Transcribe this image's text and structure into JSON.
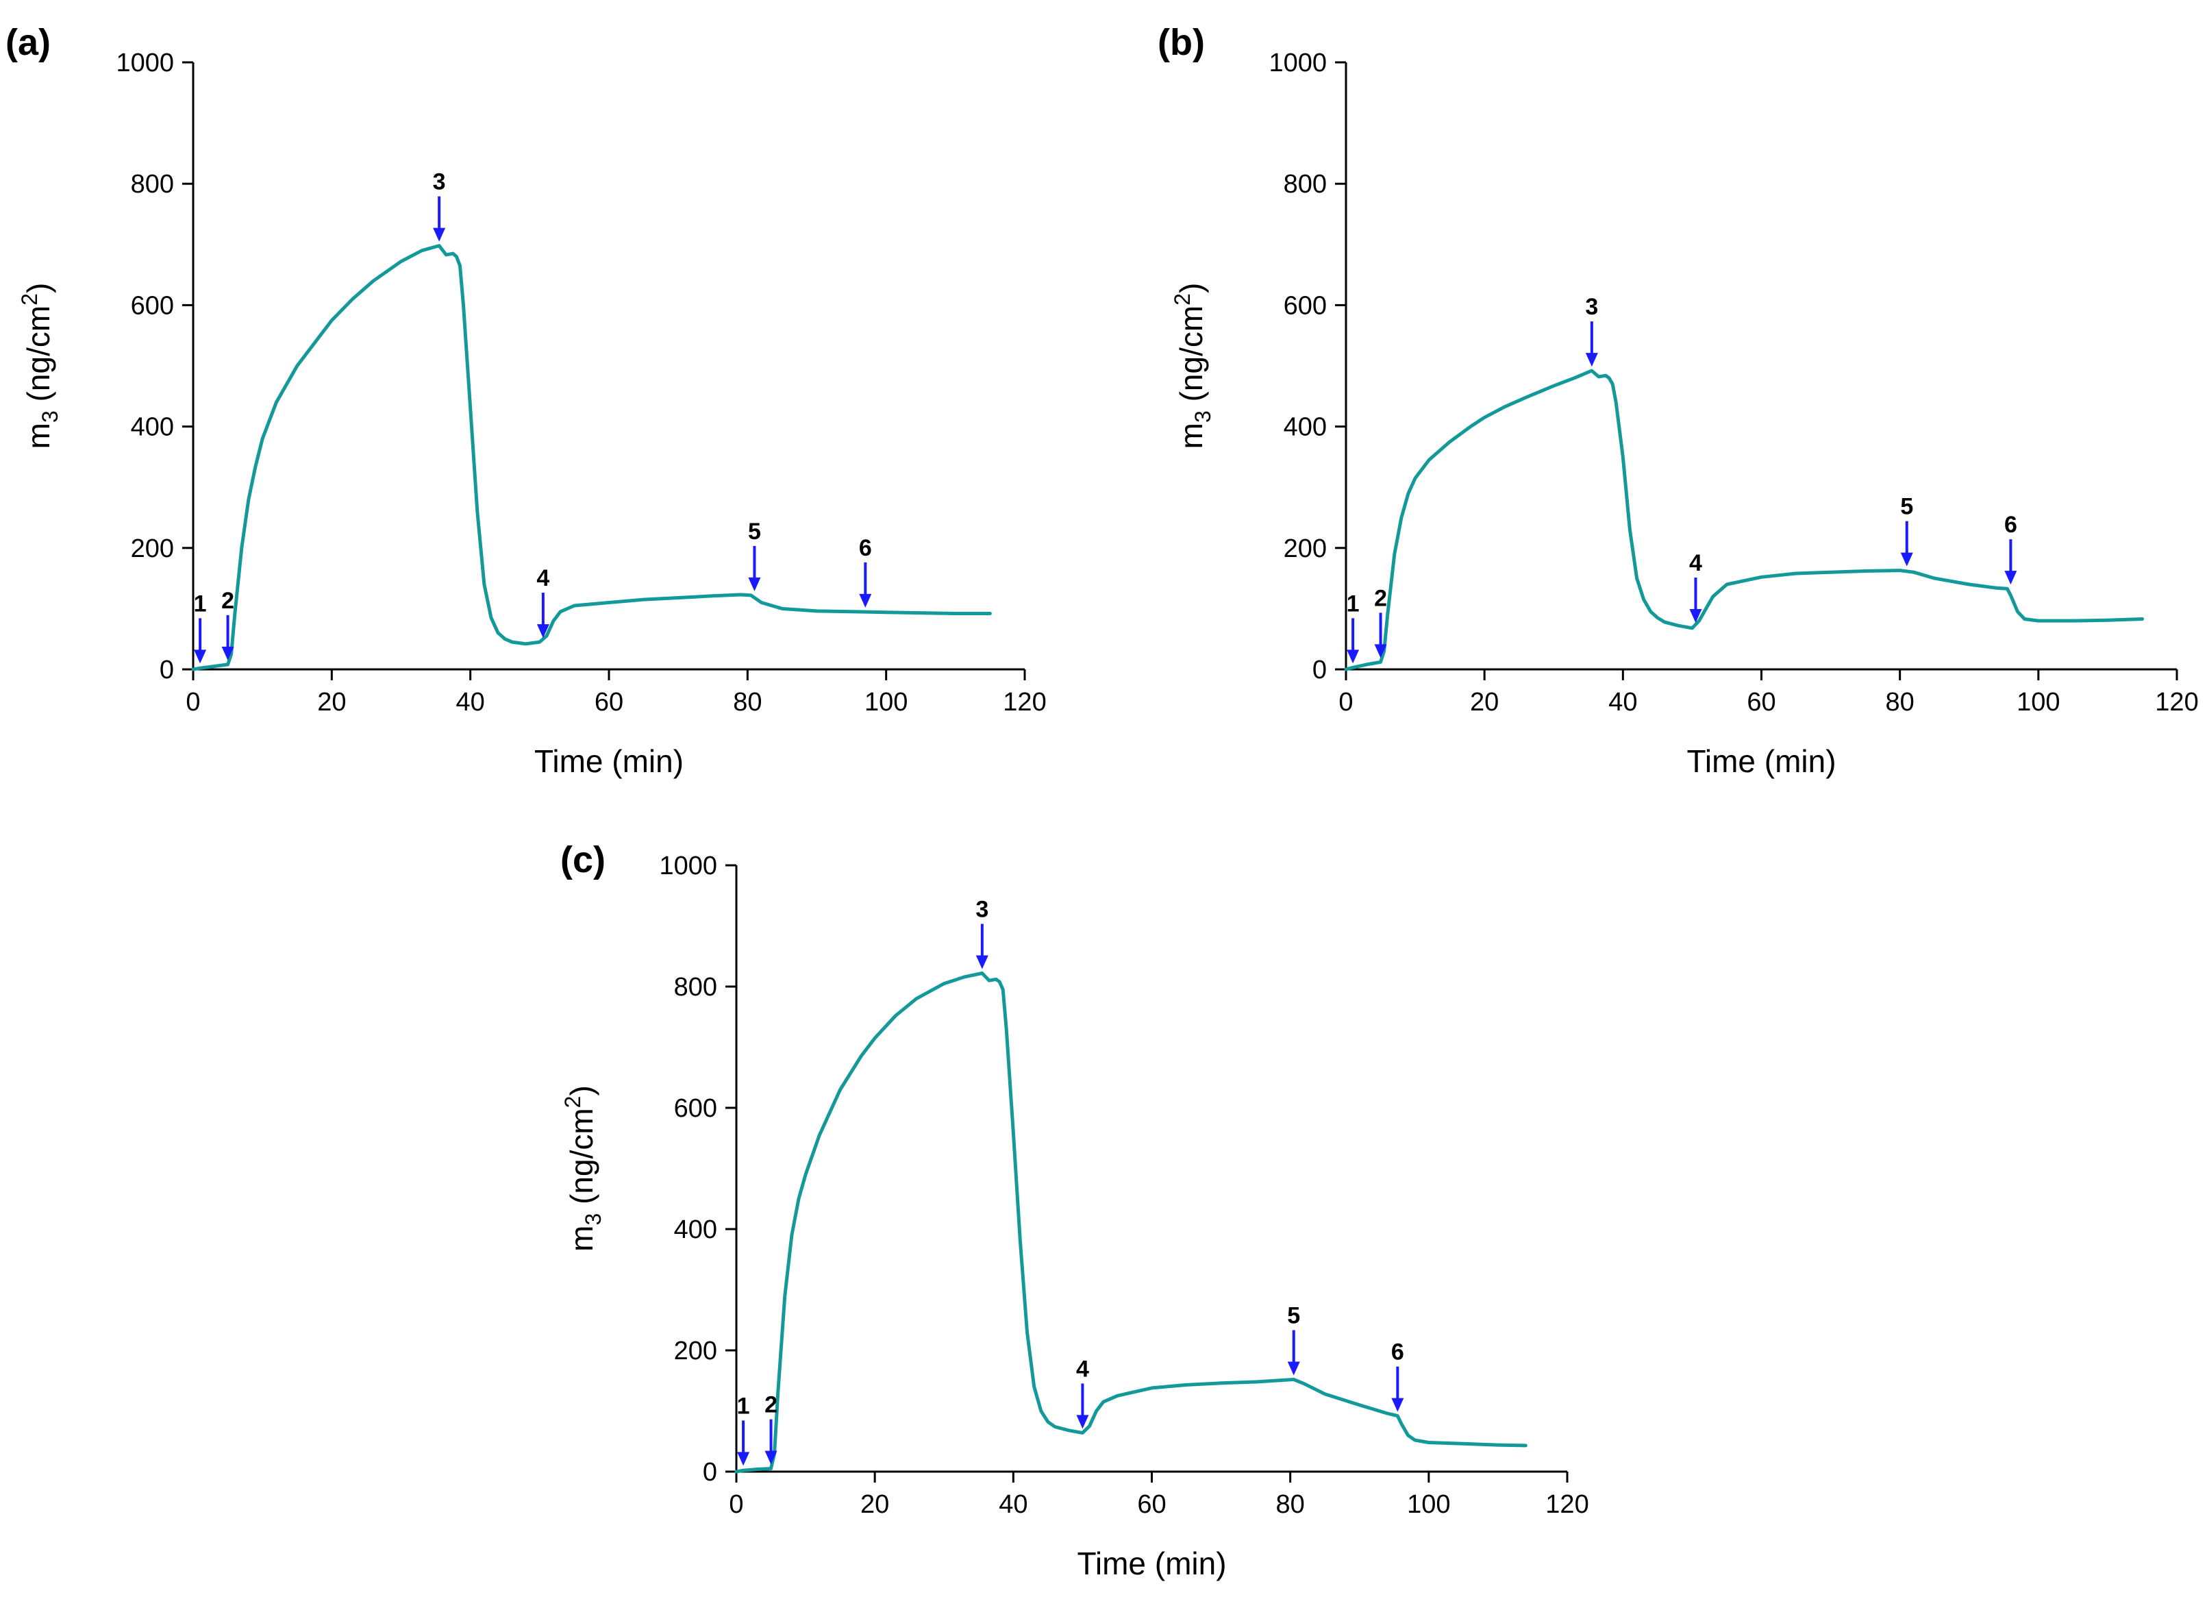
{
  "figure": "QCM-D adsorption profiles (third overtone mass) for three panels",
  "colors": {
    "series": "#14999a",
    "markers": "#1a1aff",
    "axes": "#000000"
  },
  "chart_data": [
    {
      "panel_label": "(a)",
      "type": "line",
      "title": "",
      "xlabel": "Time (min)",
      "ylabel": {
        "base": "m",
        "sub": "3",
        "unit": " (ng/cm",
        "sup": "2",
        "close": ")"
      },
      "xlim": [
        0,
        120
      ],
      "ylim": [
        0,
        1000
      ],
      "xticks": [
        0,
        20,
        40,
        60,
        80,
        100,
        120
      ],
      "yticks": [
        0,
        200,
        400,
        600,
        800,
        1000
      ],
      "xtick_labels": [
        "0",
        "20",
        "40",
        "60",
        "80",
        "100",
        "120"
      ],
      "ytick_labels": [
        "0",
        "200",
        "400",
        "600",
        "800",
        "1000"
      ],
      "series": [
        {
          "name": "m3",
          "x": [
            0,
            1,
            3,
            5,
            5.5,
            6,
            7,
            8,
            9,
            10,
            12,
            15,
            18,
            20,
            23,
            26,
            30,
            33,
            35.5,
            36.5,
            37.5,
            38,
            38.5,
            39,
            40,
            41,
            42,
            43,
            44,
            45,
            46,
            48,
            50,
            51,
            52,
            53,
            55,
            60,
            65,
            70,
            75,
            79,
            80.5,
            82,
            85,
            90,
            95,
            100,
            105,
            110,
            115
          ],
          "y": [
            0,
            2,
            5,
            8,
            25,
            90,
            200,
            280,
            335,
            380,
            440,
            500,
            545,
            575,
            610,
            640,
            672,
            690,
            698,
            683,
            685,
            680,
            665,
            600,
            430,
            260,
            140,
            85,
            60,
            50,
            45,
            42,
            45,
            55,
            80,
            95,
            105,
            110,
            115,
            118,
            121,
            123,
            122,
            110,
            100,
            96,
            95,
            94,
            93,
            92,
            92
          ]
        }
      ],
      "markers": [
        {
          "label": "1",
          "x": 1,
          "y": 3
        },
        {
          "label": "2",
          "x": 5,
          "y": 8
        },
        {
          "label": "3",
          "x": 35.5,
          "y": 698
        },
        {
          "label": "4",
          "x": 50.5,
          "y": 45
        },
        {
          "label": "5",
          "x": 81,
          "y": 122
        },
        {
          "label": "6",
          "x": 97,
          "y": 95
        }
      ]
    },
    {
      "panel_label": "(b)",
      "type": "line",
      "title": "",
      "xlabel": "Time (min)",
      "ylabel": {
        "base": "m",
        "sub": "3",
        "unit": " (ng/cm",
        "sup": "2",
        "close": ")"
      },
      "xlim": [
        0,
        120
      ],
      "ylim": [
        0,
        1000
      ],
      "xticks": [
        0,
        20,
        40,
        60,
        80,
        100,
        120
      ],
      "yticks": [
        0,
        200,
        400,
        600,
        800,
        1000
      ],
      "xtick_labels": [
        "0",
        "20",
        "40",
        "60",
        "80",
        "100",
        "120"
      ],
      "ytick_labels": [
        "0",
        "200",
        "400",
        "600",
        "800",
        "1000"
      ],
      "series": [
        {
          "name": "m3",
          "x": [
            0,
            1,
            3,
            5,
            5.5,
            6,
            7,
            8,
            9,
            10,
            12,
            15,
            18,
            20,
            23,
            26,
            30,
            33,
            35.5,
            36.5,
            37.5,
            38,
            38.5,
            39,
            40,
            41,
            42,
            43,
            44,
            45,
            46,
            48,
            50,
            51,
            52,
            53,
            55,
            60,
            65,
            70,
            75,
            80,
            82,
            85,
            90,
            94,
            95.5,
            96,
            97,
            98,
            100,
            105,
            110,
            115
          ],
          "y": [
            0,
            3,
            8,
            12,
            30,
            90,
            190,
            250,
            290,
            315,
            345,
            375,
            400,
            415,
            433,
            448,
            467,
            480,
            492,
            482,
            484,
            480,
            470,
            440,
            350,
            230,
            150,
            115,
            95,
            85,
            78,
            72,
            68,
            80,
            100,
            120,
            140,
            152,
            158,
            160,
            162,
            163,
            160,
            150,
            140,
            134,
            133,
            122,
            95,
            83,
            80,
            80,
            81,
            83
          ]
        }
      ],
      "markers": [
        {
          "label": "1",
          "x": 1,
          "y": 3
        },
        {
          "label": "2",
          "x": 5,
          "y": 12
        },
        {
          "label": "3",
          "x": 35.5,
          "y": 492
        },
        {
          "label": "4",
          "x": 50.5,
          "y": 70
        },
        {
          "label": "5",
          "x": 81,
          "y": 163
        },
        {
          "label": "6",
          "x": 96,
          "y": 133
        }
      ]
    },
    {
      "panel_label": "(c)",
      "type": "line",
      "title": "",
      "xlabel": "Time (min)",
      "ylabel": {
        "base": "m",
        "sub": "3",
        "unit": " (ng/cm",
        "sup": "2",
        "close": ")"
      },
      "xlim": [
        0,
        120
      ],
      "ylim": [
        0,
        1000
      ],
      "xticks": [
        0,
        20,
        40,
        60,
        80,
        100,
        120
      ],
      "yticks": [
        0,
        200,
        400,
        600,
        800,
        1000
      ],
      "xtick_labels": [
        "0",
        "20",
        "40",
        "60",
        "80",
        "100",
        "120"
      ],
      "ytick_labels": [
        "0",
        "200",
        "400",
        "600",
        "800",
        "1000"
      ],
      "series": [
        {
          "name": "m3",
          "x": [
            0,
            1,
            3,
            5,
            5.5,
            6,
            7,
            8,
            9,
            10,
            12,
            15,
            18,
            20,
            23,
            26,
            30,
            33,
            35.5,
            36.5,
            37.5,
            38,
            38.5,
            39,
            40,
            41,
            42,
            43,
            44,
            45,
            46,
            48,
            50,
            51,
            52,
            53,
            55,
            60,
            65,
            70,
            75,
            80.5,
            82,
            85,
            90,
            94,
            95.5,
            96,
            97,
            98,
            100,
            105,
            110,
            114
          ],
          "y": [
            0,
            2,
            4,
            5,
            30,
            130,
            290,
            390,
            450,
            490,
            555,
            630,
            685,
            715,
            752,
            780,
            805,
            816,
            822,
            810,
            812,
            808,
            795,
            730,
            560,
            380,
            230,
            140,
            100,
            82,
            74,
            68,
            64,
            75,
            100,
            115,
            125,
            138,
            143,
            146,
            148,
            152,
            145,
            128,
            110,
            96,
            92,
            80,
            60,
            52,
            48,
            46,
            44,
            43
          ]
        }
      ],
      "markers": [
        {
          "label": "1",
          "x": 1,
          "y": 3
        },
        {
          "label": "2",
          "x": 5,
          "y": 5
        },
        {
          "label": "3",
          "x": 35.5,
          "y": 822
        },
        {
          "label": "4",
          "x": 50,
          "y": 64
        },
        {
          "label": "5",
          "x": 80.5,
          "y": 152
        },
        {
          "label": "6",
          "x": 95.5,
          "y": 92
        }
      ]
    }
  ]
}
